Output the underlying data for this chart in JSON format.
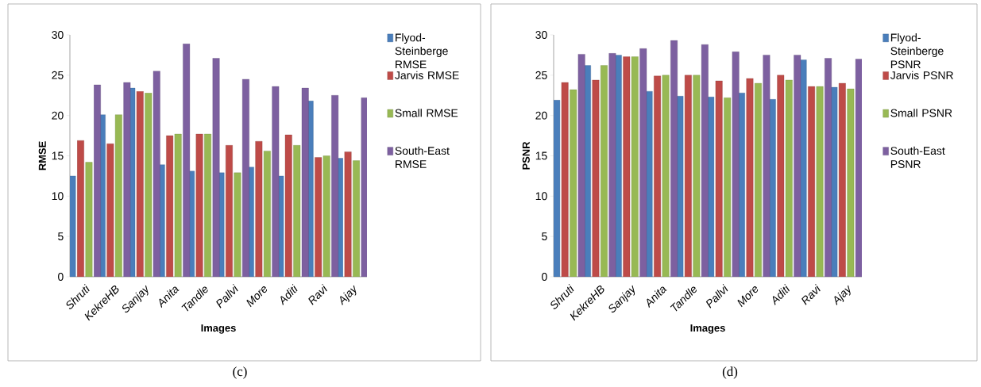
{
  "chart_data": [
    {
      "type": "bar",
      "xlabel": "Images",
      "ylabel": "RMSE",
      "categories": [
        "Shruti",
        "KekreHB",
        "Sanjay",
        "Anita",
        "Tandle",
        "Pallvi",
        "More",
        "Aditi",
        "Ravi",
        "Ajay"
      ],
      "series": [
        {
          "name": "Flyod-Steinberge RMSE",
          "color": "#4a7ebb",
          "values": [
            12.5,
            20.1,
            23.4,
            13.9,
            13.1,
            12.9,
            13.6,
            12.5,
            21.8,
            14.7
          ]
        },
        {
          "name": "Jarvis RMSE",
          "color": "#be4b48",
          "values": [
            16.9,
            16.5,
            23.0,
            17.5,
            17.7,
            16.3,
            16.8,
            17.6,
            14.8,
            15.5
          ]
        },
        {
          "name": "Small RMSE",
          "color": "#98b954",
          "values": [
            14.2,
            20.1,
            22.8,
            17.7,
            17.7,
            12.9,
            15.6,
            16.3,
            15.0,
            14.4
          ]
        },
        {
          "name": "South-East RMSE",
          "color": "#7d60a0",
          "values": [
            23.8,
            24.1,
            25.5,
            28.9,
            27.1,
            24.5,
            23.6,
            23.4,
            22.5,
            22.2
          ]
        }
      ],
      "ylim": [
        0,
        30
      ],
      "yticks": [
        0,
        5,
        10,
        15,
        20,
        25,
        30
      ],
      "legend": "right",
      "annotations": [
        "(c)"
      ]
    },
    {
      "type": "bar",
      "xlabel": "Images",
      "ylabel": "PSNR",
      "categories": [
        "Shruti",
        "KekreHB",
        "Sanjay",
        "Anita",
        "Tandle",
        "Pallvi",
        "More",
        "Aditi",
        "Ravi",
        "Ajay"
      ],
      "series": [
        {
          "name": "Flyod-Steinberge PSNR",
          "color": "#4a7ebb",
          "values": [
            21.9,
            26.2,
            27.5,
            23.0,
            22.4,
            22.3,
            22.8,
            22.0,
            26.9,
            23.5
          ]
        },
        {
          "name": "Jarvis PSNR",
          "color": "#be4b48",
          "values": [
            24.1,
            24.4,
            27.3,
            24.9,
            25.0,
            24.3,
            24.6,
            25.0,
            23.6,
            24.0
          ]
        },
        {
          "name": "Small PSNR",
          "color": "#98b954",
          "values": [
            23.2,
            26.2,
            27.3,
            25.0,
            25.0,
            22.2,
            24.0,
            24.4,
            23.6,
            23.3
          ]
        },
        {
          "name": "South-East PSNR",
          "color": "#7d60a0",
          "values": [
            27.6,
            27.7,
            28.3,
            29.3,
            28.8,
            27.9,
            27.5,
            27.5,
            27.1,
            27.0
          ]
        }
      ],
      "ylim": [
        0,
        30
      ],
      "yticks": [
        0,
        5,
        10,
        15,
        20,
        25,
        30
      ],
      "legend": "right",
      "annotations": [
        "(d)"
      ]
    }
  ]
}
